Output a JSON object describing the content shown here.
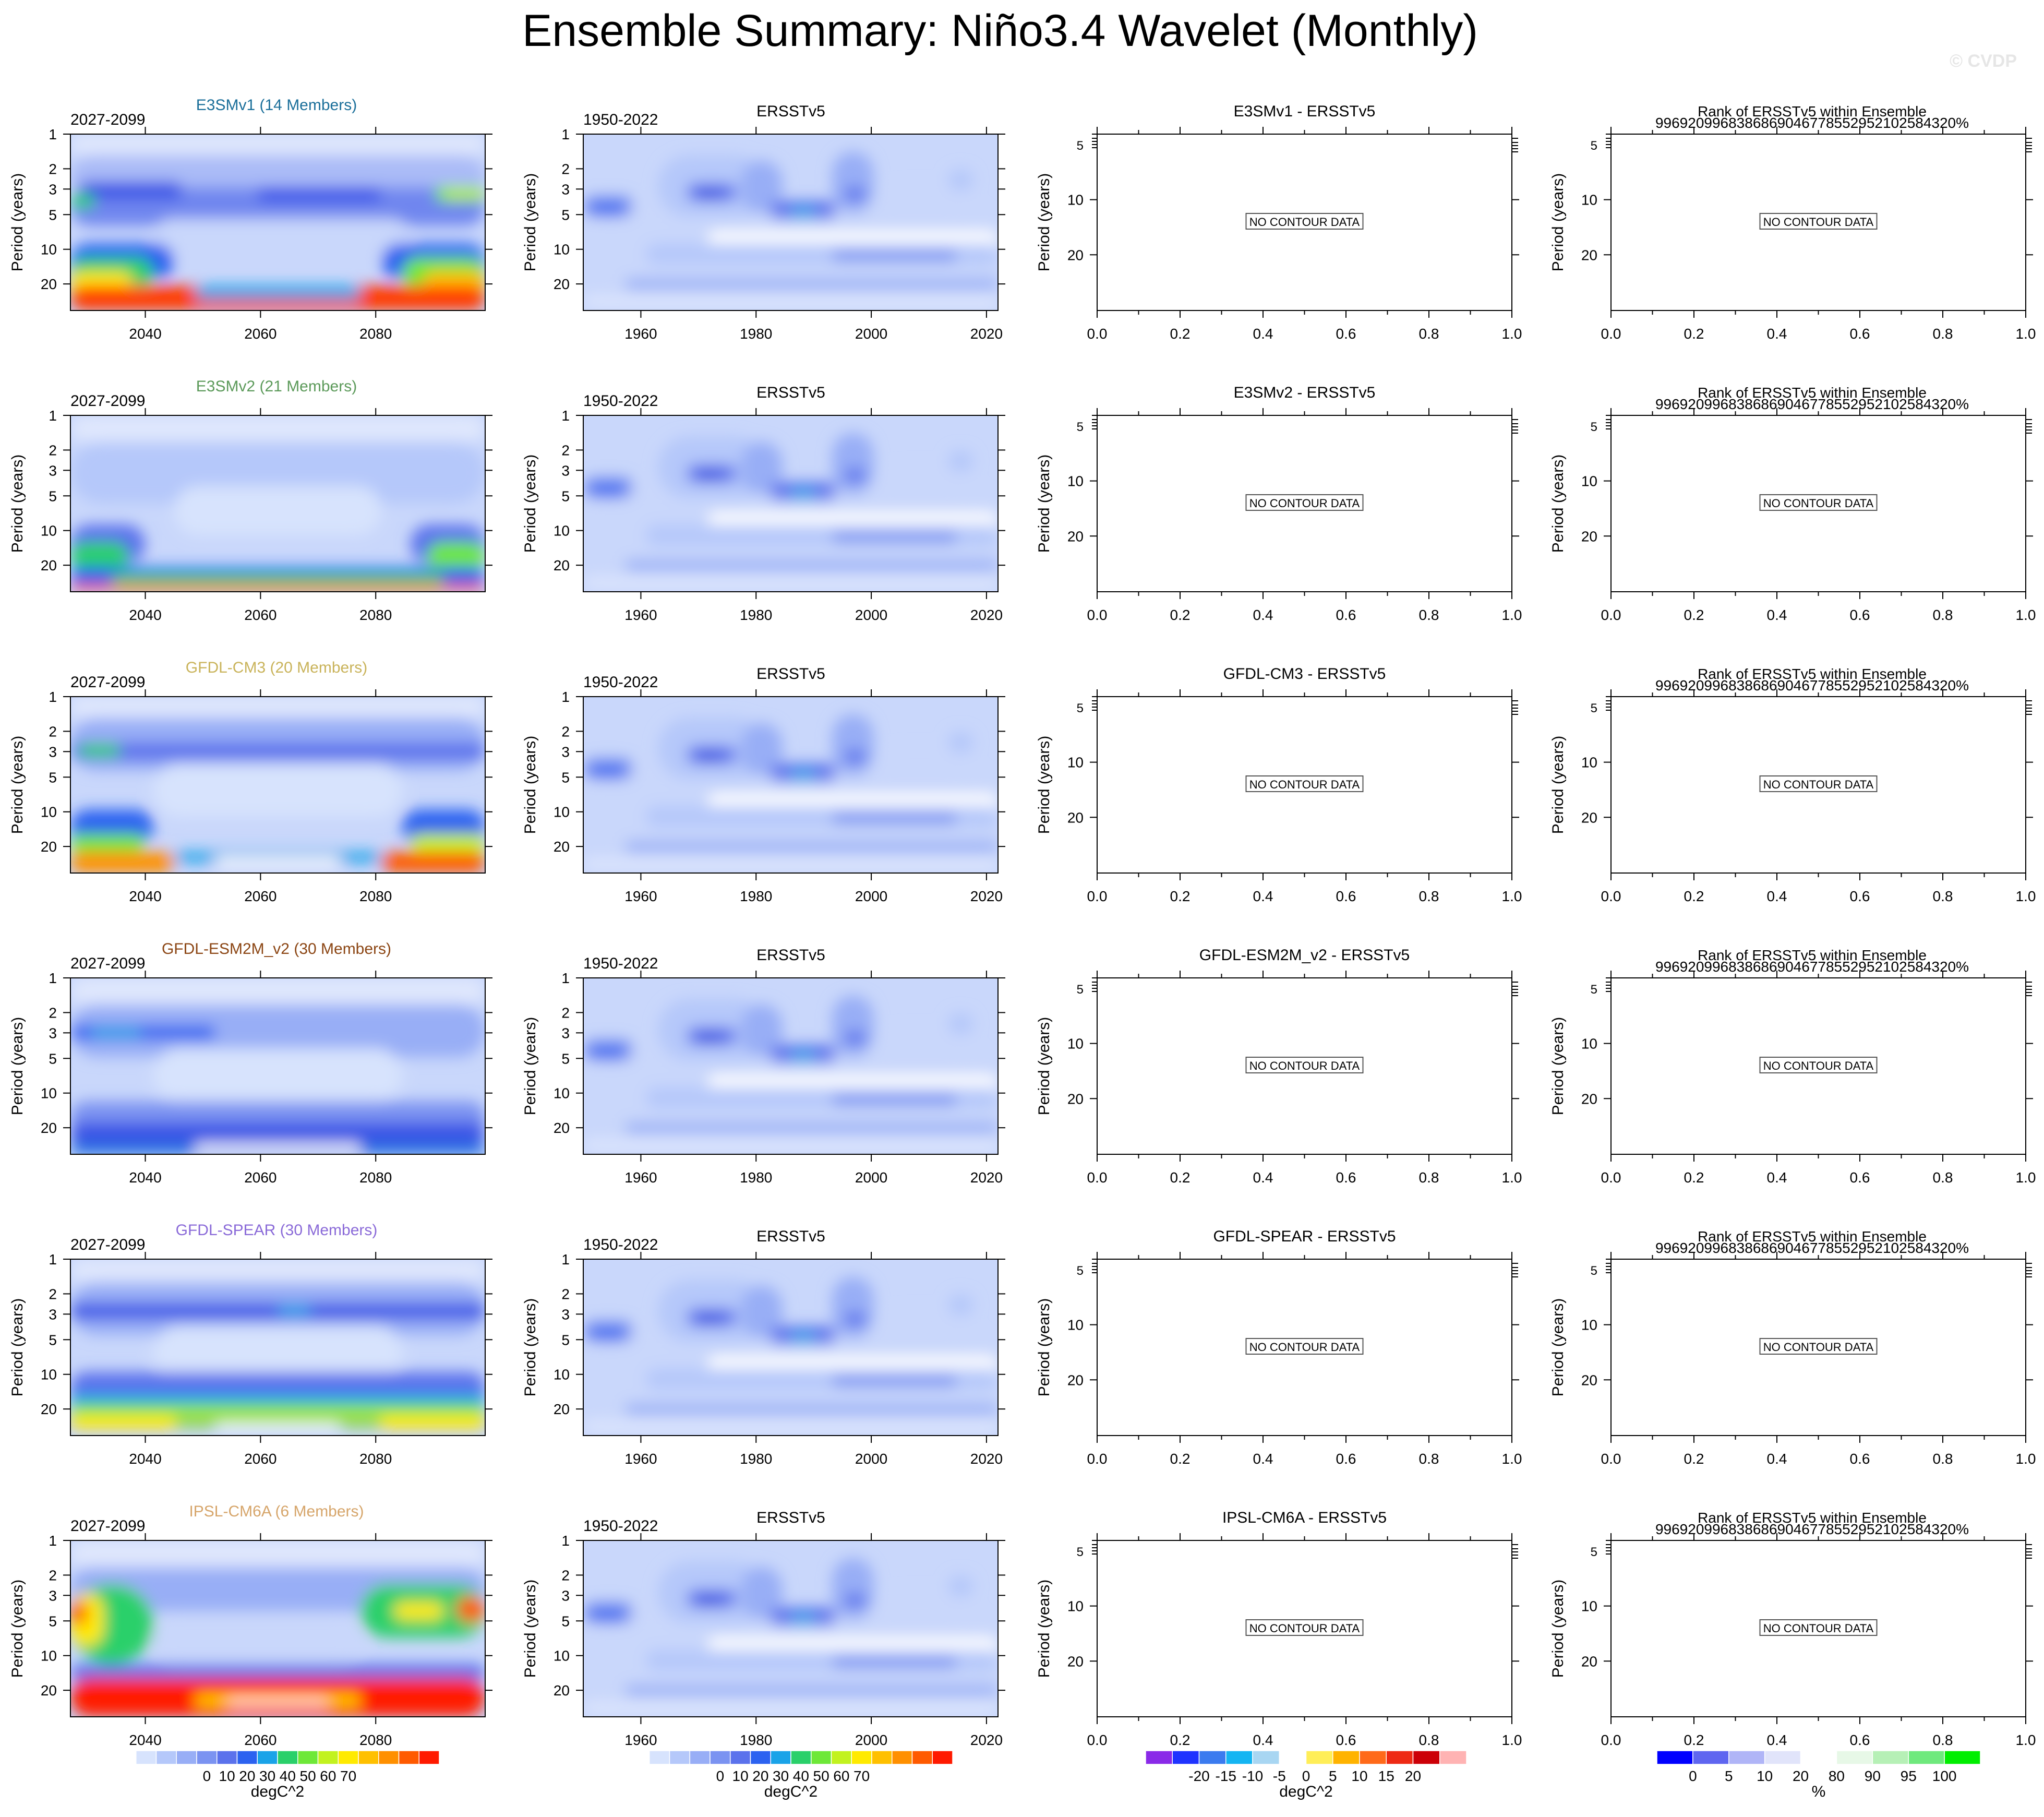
{
  "page": {
    "title": "Ensemble Summary: Niño3.4 Wavelet (Monthly)",
    "watermark": "© CVDP"
  },
  "colors": {
    "wavelet_scale": [
      "#ffffff",
      "#d7e3fd",
      "#b5c8fa",
      "#98aef6",
      "#7b93f1",
      "#5b72ec",
      "#2c62f0",
      "#1aa3e8",
      "#2ad06a",
      "#6ee838",
      "#c2f21f",
      "#ffea00",
      "#ffc000",
      "#ff9000",
      "#ff5a00",
      "#ff1a00"
    ],
    "diff_scale": [
      "#8a2ae8",
      "#1f33ff",
      "#3b7bef",
      "#14b5f2",
      "#a8d6f2",
      "#ffffff",
      "#ffee58",
      "#ffb300",
      "#ff6a1a",
      "#ee2a14",
      "#cc0008",
      "#ffb3b3"
    ],
    "rank_scale": [
      "#0000ff",
      "#5f66f0",
      "#b0b5f7",
      "#e1e4fa",
      "#ffffff",
      "#e7f8e7",
      "#b6f0b6",
      "#6fe97d",
      "#00ee00"
    ]
  },
  "column_titles": {
    "obs": "ERSSTv5",
    "rank": "Rank of ERSSTv5 within Ensemble",
    "rank_sub": "9969209968386869046778552952102584320%"
  },
  "labels": {
    "ylabel": "Period (years)",
    "no_data": "NO CONTOUR DATA",
    "model_period": "2027-2099",
    "obs_period": "1950-2022"
  },
  "rows": [
    {
      "model": "E3SMv1 (14 Members)",
      "diff": "E3SMv1 - ERSSTv5",
      "color": "#1b6f9a"
    },
    {
      "model": "E3SMv2 (21 Members)",
      "diff": "E3SMv2 - ERSSTv5",
      "color": "#5c9a5a"
    },
    {
      "model": "GFDL-CM3 (20 Members)",
      "diff": "GFDL-CM3 - ERSSTv5",
      "color": "#c9b35a"
    },
    {
      "model": "GFDL-ESM2M_v2 (30 Members)",
      "diff": "GFDL-ESM2M_v2 - ERSSTv5",
      "color": "#8b4513"
    },
    {
      "model": "GFDL-SPEAR (30 Members)",
      "diff": "GFDL-SPEAR - ERSSTv5",
      "color": "#8a6ad8"
    },
    {
      "model": "IPSL-CM6A (6 Members)",
      "diff": "IPSL-CM6A - ERSSTv5",
      "color": "#d6a56a"
    }
  ],
  "chart_data": [
    {
      "type": "heatmap",
      "panel": "model wavelet power",
      "ylabel": "Period (years)",
      "x_ticks": [
        "2040",
        "2060",
        "2080"
      ],
      "y_ticks": [
        "1",
        "2",
        "3",
        "5",
        "10",
        "20"
      ],
      "y_scale": "log",
      "colorbar": {
        "levels": [
          "0",
          "10",
          "20",
          "30",
          "40",
          "50",
          "60",
          "70"
        ],
        "units": "degC^2"
      }
    },
    {
      "type": "heatmap",
      "panel": "observed wavelet power",
      "ylabel": "Period (years)",
      "x_ticks": [
        "1960",
        "1980",
        "2000",
        "2020"
      ],
      "y_ticks": [
        "1",
        "2",
        "3",
        "5",
        "10",
        "20"
      ],
      "y_scale": "log",
      "colorbar": {
        "levels": [
          "0",
          "10",
          "20",
          "30",
          "40",
          "50",
          "60",
          "70"
        ],
        "units": "degC^2"
      }
    },
    {
      "type": "heatmap",
      "panel": "difference",
      "ylabel": "Period (years)",
      "x_ticks": [
        "0.0",
        "0.2",
        "0.4",
        "0.6",
        "0.8",
        "1.0"
      ],
      "y_ticks": [
        "10",
        "20"
      ],
      "colorbar": {
        "levels": [
          "-20",
          "-15",
          "-10",
          "-5",
          "0",
          "5",
          "10",
          "15",
          "20"
        ],
        "units": "degC^2"
      }
    },
    {
      "type": "heatmap",
      "panel": "rank",
      "ylabel": "Period (years)",
      "x_ticks": [
        "0.0",
        "0.2",
        "0.4",
        "0.6",
        "0.8",
        "1.0"
      ],
      "y_ticks": [
        "10",
        "20"
      ],
      "colorbar": {
        "levels": [
          "0",
          "5",
          "10",
          "20",
          "80",
          "90",
          "95",
          "100"
        ],
        "units": "%"
      }
    }
  ]
}
